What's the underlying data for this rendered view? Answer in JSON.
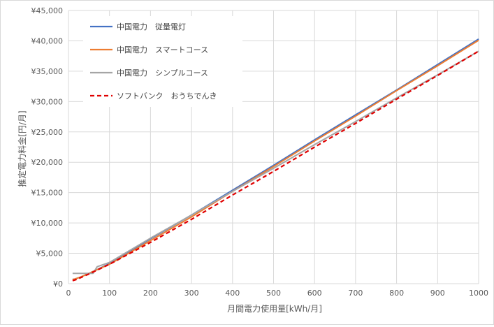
{
  "chart_data": {
    "type": "line",
    "xlabel": "月間電力使用量[kWh/月]",
    "ylabel": "推定電力料金[円/月]",
    "xlim": [
      0,
      1000
    ],
    "ylim": [
      0,
      45000
    ],
    "x_ticks": [
      "0",
      "100",
      "200",
      "300",
      "400",
      "500",
      "600",
      "700",
      "800",
      "900",
      "1000"
    ],
    "y_ticks": [
      "¥0",
      "¥5,000",
      "¥10,000",
      "¥15,000",
      "¥20,000",
      "¥25,000",
      "¥30,000",
      "¥35,000",
      "¥40,000",
      "¥45,000"
    ],
    "grid": true,
    "legend_position": "top-left",
    "series": [
      {
        "name": "中国電力　従量電灯",
        "color": "#4472c4",
        "dash": "solid",
        "points": [
          [
            10,
            700
          ],
          [
            15,
            750
          ],
          [
            30,
            1100
          ],
          [
            60,
            2000
          ],
          [
            100,
            3300
          ],
          [
            200,
            7400
          ],
          [
            300,
            11300
          ],
          [
            400,
            15400
          ],
          [
            500,
            19500
          ],
          [
            600,
            23700
          ],
          [
            700,
            27800
          ],
          [
            800,
            31900
          ],
          [
            900,
            36100
          ],
          [
            1000,
            40300
          ]
        ]
      },
      {
        "name": "中国電力　スマートコース",
        "color": "#ed7d31",
        "dash": "solid",
        "points": [
          [
            10,
            700
          ],
          [
            15,
            750
          ],
          [
            30,
            1100
          ],
          [
            60,
            2000
          ],
          [
            100,
            3200
          ],
          [
            200,
            7100
          ],
          [
            300,
            11000
          ],
          [
            400,
            15200
          ],
          [
            500,
            19300
          ],
          [
            600,
            23500
          ],
          [
            700,
            27600
          ],
          [
            800,
            31800
          ],
          [
            900,
            35900
          ],
          [
            1000,
            40100
          ]
        ]
      },
      {
        "name": "中国電力　シンプルコース",
        "color": "#a5a5a5",
        "dash": "solid",
        "points": [
          [
            10,
            1700
          ],
          [
            30,
            1700
          ],
          [
            60,
            1700
          ],
          [
            70,
            2800
          ],
          [
            100,
            3500
          ],
          [
            200,
            7500
          ],
          [
            300,
            11300
          ],
          [
            400,
            15200
          ],
          [
            500,
            19000
          ],
          [
            600,
            22900
          ],
          [
            700,
            26700
          ],
          [
            800,
            30600
          ],
          [
            900,
            34400
          ],
          [
            1000,
            38300
          ]
        ]
      },
      {
        "name": "ソフトバンク　おうちでんき",
        "color": "#e00000",
        "dash": "dashed",
        "points": [
          [
            10,
            500
          ],
          [
            20,
            700
          ],
          [
            50,
            1600
          ],
          [
            100,
            3200
          ],
          [
            200,
            6800
          ],
          [
            300,
            10600
          ],
          [
            400,
            14600
          ],
          [
            500,
            18500
          ],
          [
            600,
            22500
          ],
          [
            700,
            26400
          ],
          [
            800,
            30400
          ],
          [
            900,
            34300
          ],
          [
            1000,
            38300
          ]
        ]
      }
    ]
  }
}
